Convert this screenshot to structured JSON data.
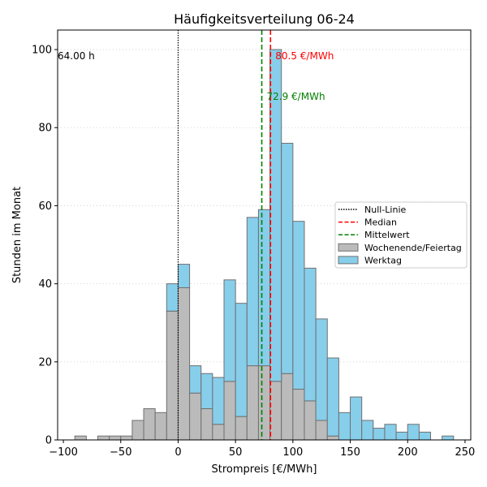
{
  "chart_data": {
    "type": "histogram",
    "title": "Häufigkeitsverteilung 06-24",
    "xlabel": "Strompreis [€/MWh]",
    "ylabel": "Stunden im Monat",
    "xlim": [
      -105,
      255
    ],
    "ylim": [
      0,
      105
    ],
    "xticks": [
      -100,
      -50,
      0,
      50,
      100,
      150,
      200,
      250
    ],
    "yticks": [
      0,
      20,
      40,
      60,
      80,
      100
    ],
    "grid": "y-dotted",
    "bin_width": 10,
    "series": [
      {
        "name": "Wochenende/Feiertag",
        "color": "#bbbbbb",
        "bins": [
          {
            "x": -90,
            "y": 1
          },
          {
            "x": -70,
            "y": 1
          },
          {
            "x": -60,
            "y": 1
          },
          {
            "x": -50,
            "y": 1
          },
          {
            "x": -40,
            "y": 5
          },
          {
            "x": -30,
            "y": 8
          },
          {
            "x": -20,
            "y": 7
          },
          {
            "x": -10,
            "y": 33
          },
          {
            "x": 0,
            "y": 39
          },
          {
            "x": 10,
            "y": 12
          },
          {
            "x": 20,
            "y": 8
          },
          {
            "x": 30,
            "y": 4
          },
          {
            "x": 40,
            "y": 15
          },
          {
            "x": 50,
            "y": 6
          },
          {
            "x": 60,
            "y": 19
          },
          {
            "x": 70,
            "y": 19
          },
          {
            "x": 80,
            "y": 15
          },
          {
            "x": 90,
            "y": 17
          },
          {
            "x": 100,
            "y": 13
          },
          {
            "x": 110,
            "y": 10
          },
          {
            "x": 120,
            "y": 5
          },
          {
            "x": 130,
            "y": 1
          }
        ]
      },
      {
        "name": "Werktag",
        "color": "#87ceeb",
        "bins": [
          {
            "x": -10,
            "y": 7
          },
          {
            "x": 0,
            "y": 6
          },
          {
            "x": 10,
            "y": 7
          },
          {
            "x": 20,
            "y": 9
          },
          {
            "x": 30,
            "y": 12
          },
          {
            "x": 40,
            "y": 26
          },
          {
            "x": 50,
            "y": 29
          },
          {
            "x": 60,
            "y": 38
          },
          {
            "x": 70,
            "y": 40
          },
          {
            "x": 80,
            "y": 85
          },
          {
            "x": 90,
            "y": 59
          },
          {
            "x": 100,
            "y": 43
          },
          {
            "x": 110,
            "y": 34
          },
          {
            "x": 120,
            "y": 26
          },
          {
            "x": 130,
            "y": 20
          },
          {
            "x": 140,
            "y": 7
          },
          {
            "x": 150,
            "y": 11
          },
          {
            "x": 160,
            "y": 5
          },
          {
            "x": 170,
            "y": 3
          },
          {
            "x": 180,
            "y": 4
          },
          {
            "x": 190,
            "y": 2
          },
          {
            "x": 200,
            "y": 4
          },
          {
            "x": 210,
            "y": 2
          },
          {
            "x": 230,
            "y": 1
          }
        ]
      }
    ],
    "lines": [
      {
        "name": "Null-Linie",
        "x": 0,
        "color": "#000000",
        "style": "dotted"
      },
      {
        "name": "Median",
        "x": 80.5,
        "color": "#ff0000",
        "style": "dashed",
        "label": "80.5 €/MWh"
      },
      {
        "name": "Mittelwert",
        "x": 72.9,
        "color": "#008000",
        "style": "dashed",
        "label": "72.9 €/MWh"
      }
    ],
    "annotation_left": "64.00 h",
    "legend": {
      "position": "center-right",
      "entries": [
        "Null-Linie",
        "Median",
        "Mittelwert",
        "Wochenende/Feiertag",
        "Werktag"
      ]
    }
  }
}
